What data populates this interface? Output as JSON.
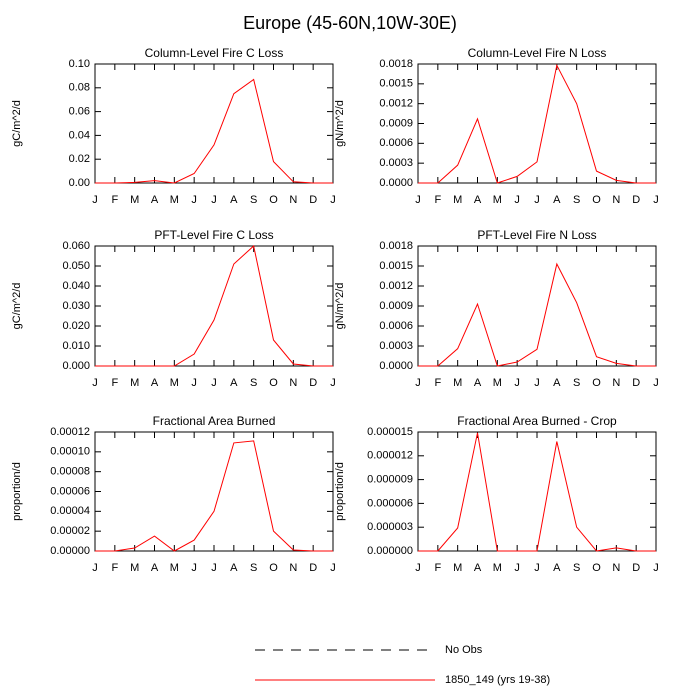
{
  "title": "Europe (45-60N,10W-30E)",
  "legend": [
    {
      "name": "No Obs",
      "color": "#000000",
      "dash": true
    },
    {
      "name": "1850_149 (yrs 19-38)",
      "color": "#ff0000"
    }
  ],
  "chart_data": [
    {
      "type": "line",
      "title": "Column-Level Fire C Loss",
      "y_label": "gC/m^2/d",
      "categories": [
        "J",
        "F",
        "M",
        "A",
        "M",
        "J",
        "J",
        "A",
        "S",
        "O",
        "N",
        "D",
        "J"
      ],
      "series": [
        {
          "color": "#ff0000",
          "values": [
            0,
            0,
            0.0005,
            0.002,
            0,
            0.008,
            0.032,
            0.075,
            0.087,
            0.018,
            0.001,
            0,
            0
          ]
        }
      ],
      "ylim": [
        0,
        0.1
      ],
      "yticks": [
        {
          "value": 0,
          "label": "0.00"
        },
        {
          "value": 0.02,
          "label": "0.02"
        },
        {
          "value": 0.04,
          "label": "0.04"
        },
        {
          "value": 0.06,
          "label": "0.06"
        },
        {
          "value": 0.08,
          "label": "0.08"
        },
        {
          "value": 0.1,
          "label": "0.10"
        }
      ]
    },
    {
      "type": "line",
      "title": "Column-Level Fire N Loss",
      "y_label": "gN/m^2/d",
      "categories": [
        "J",
        "F",
        "M",
        "A",
        "M",
        "J",
        "J",
        "A",
        "S",
        "O",
        "N",
        "D",
        "J"
      ],
      "series": [
        {
          "color": "#ff0000",
          "values": [
            0,
            0,
            0.00027,
            0.00097,
            0,
            0.0001,
            0.00032,
            0.00178,
            0.0012,
            0.00018,
            4e-05,
            0,
            0
          ]
        }
      ],
      "ylim": [
        0,
        0.0018
      ],
      "yticks": [
        {
          "value": 0,
          "label": "0.0000"
        },
        {
          "value": 0.0003,
          "label": "0.0003"
        },
        {
          "value": 0.0006,
          "label": "0.0006"
        },
        {
          "value": 0.0009,
          "label": "0.0009"
        },
        {
          "value": 0.0012,
          "label": "0.0012"
        },
        {
          "value": 0.0015,
          "label": "0.0015"
        },
        {
          "value": 0.0018,
          "label": "0.0018"
        }
      ]
    },
    {
      "type": "line",
      "title": "PFT-Level Fire C Loss",
      "y_label": "gC/m^2/d",
      "categories": [
        "J",
        "F",
        "M",
        "A",
        "M",
        "J",
        "J",
        "A",
        "S",
        "O",
        "N",
        "D",
        "J"
      ],
      "series": [
        {
          "color": "#ff0000",
          "values": [
            0,
            0,
            0,
            0,
            0,
            0.006,
            0.023,
            0.051,
            0.06,
            0.013,
            0.001,
            0,
            0
          ]
        }
      ],
      "ylim": [
        0,
        0.06
      ],
      "yticks": [
        {
          "value": 0,
          "label": "0.000"
        },
        {
          "value": 0.01,
          "label": "0.010"
        },
        {
          "value": 0.02,
          "label": "0.020"
        },
        {
          "value": 0.03,
          "label": "0.030"
        },
        {
          "value": 0.04,
          "label": "0.040"
        },
        {
          "value": 0.05,
          "label": "0.050"
        },
        {
          "value": 0.06,
          "label": "0.060"
        }
      ]
    },
    {
      "type": "line",
      "title": "PFT-Level Fire N Loss",
      "y_label": "gN/m^2/d",
      "categories": [
        "J",
        "F",
        "M",
        "A",
        "M",
        "J",
        "J",
        "A",
        "S",
        "O",
        "N",
        "D",
        "J"
      ],
      "series": [
        {
          "color": "#ff0000",
          "values": [
            0,
            0,
            0.00026,
            0.00093,
            0,
            6e-05,
            0.00025,
            0.00153,
            0.00095,
            0.00014,
            4e-05,
            0,
            0
          ]
        }
      ],
      "ylim": [
        0,
        0.0018
      ],
      "yticks": [
        {
          "value": 0,
          "label": "0.0000"
        },
        {
          "value": 0.0003,
          "label": "0.0003"
        },
        {
          "value": 0.0006,
          "label": "0.0006"
        },
        {
          "value": 0.0009,
          "label": "0.0009"
        },
        {
          "value": 0.0012,
          "label": "0.0012"
        },
        {
          "value": 0.0015,
          "label": "0.0015"
        },
        {
          "value": 0.0018,
          "label": "0.0018"
        }
      ]
    },
    {
      "type": "line",
      "title": "Fractional Area Burned",
      "y_label": "proportion/d",
      "categories": [
        "J",
        "F",
        "M",
        "A",
        "M",
        "J",
        "J",
        "A",
        "S",
        "O",
        "N",
        "D",
        "J"
      ],
      "series": [
        {
          "color": "#ff0000",
          "values": [
            0,
            0,
            3e-06,
            1.5e-05,
            0,
            1.1e-05,
            4e-05,
            0.000109,
            0.000111,
            2e-05,
            1e-06,
            0,
            0
          ]
        }
      ],
      "ylim": [
        0,
        0.00012
      ],
      "yticks": [
        {
          "value": 0,
          "label": "0.00000"
        },
        {
          "value": 2e-05,
          "label": "0.00002"
        },
        {
          "value": 4e-05,
          "label": "0.00004"
        },
        {
          "value": 6e-05,
          "label": "0.00006"
        },
        {
          "value": 8e-05,
          "label": "0.00008"
        },
        {
          "value": 0.0001,
          "label": "0.00010"
        },
        {
          "value": 0.00012,
          "label": "0.00012"
        }
      ]
    },
    {
      "type": "line",
      "title": "Fractional Area Burned - Crop",
      "y_label": "proportion/d",
      "categories": [
        "J",
        "F",
        "M",
        "A",
        "M",
        "J",
        "J",
        "A",
        "S",
        "O",
        "N",
        "D",
        "J"
      ],
      "series": [
        {
          "color": "#ff0000",
          "values": [
            0,
            0,
            2.9e-06,
            1.49e-05,
            0,
            0,
            0,
            1.38e-05,
            3e-06,
            0,
            4e-07,
            0,
            0
          ]
        }
      ],
      "ylim": [
        0,
        1.5e-05
      ],
      "yticks": [
        {
          "value": 0,
          "label": "0.000000"
        },
        {
          "value": 3e-06,
          "label": "0.000003"
        },
        {
          "value": 6e-06,
          "label": "0.000006"
        },
        {
          "value": 9e-06,
          "label": "0.000009"
        },
        {
          "value": 1.2e-05,
          "label": "0.000012"
        },
        {
          "value": 1.5e-05,
          "label": "0.000015"
        }
      ]
    }
  ]
}
